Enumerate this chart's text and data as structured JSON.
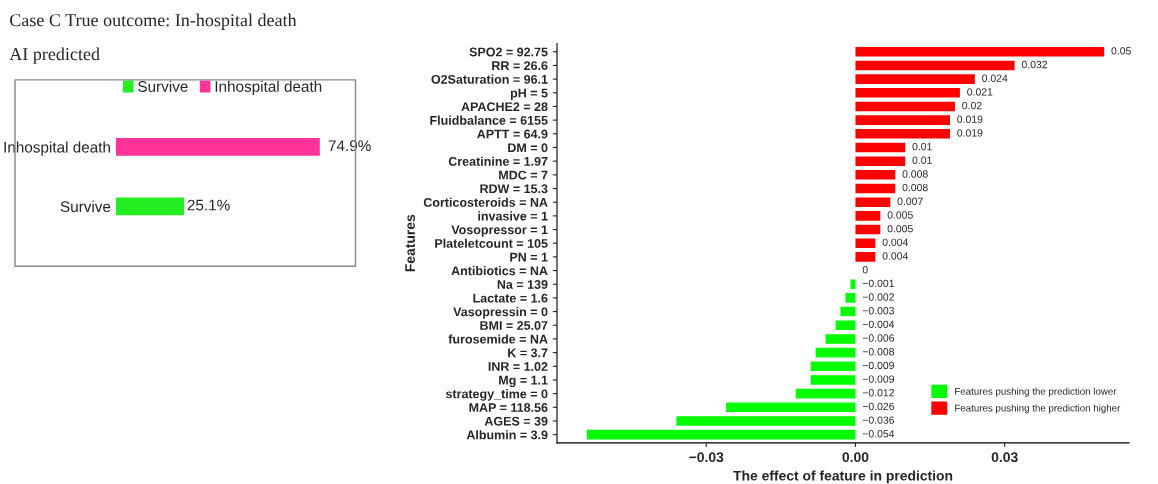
{
  "chart_data": [
    {
      "type": "bar",
      "orientation": "horizontal",
      "title": "Case C True outcome: In-hospital death",
      "subtitle": "AI predicted",
      "categories": [
        "Inhospital death",
        "Survive"
      ],
      "series": [
        {
          "name": "Survive",
          "color": "#22ee22",
          "values": [
            null,
            25.1
          ],
          "value_labels": [
            null,
            "25.1%"
          ]
        },
        {
          "name": "Inhospital death",
          "color": "#ff3399",
          "values": [
            74.9,
            null
          ],
          "value_labels": [
            "74.9%",
            null
          ]
        }
      ],
      "tick_labels": "y",
      "legend": "top"
    },
    {
      "type": "bar",
      "orientation": "horizontal",
      "xlabel": "The effect of feature in prediction",
      "ylabel": "Features",
      "categories": [
        "SPO2 = 92.75",
        "RR = 26.6",
        "O2Saturation = 96.1",
        "pH = 5",
        "APACHE2 = 28",
        "Fluidbalance = 6155",
        "APTT = 64.9",
        "DM = 0",
        "Creatinine = 1.97",
        "MDC = 7",
        "RDW = 15.3",
        "Corticosteroids = NA",
        "invasive = 1",
        "Vosopressor = 1",
        "Plateletcount = 105",
        "PN = 1",
        "Antibiotics = NA",
        "Na = 139",
        "Lactate = 1.6",
        "Vasopressin = 0",
        "BMI = 25.07",
        "furosemide = NA",
        "K = 3.7",
        "INR = 1.02",
        "Mg = 1.1",
        "strategy_time = 0",
        "MAP = 118.56",
        "AGES = 39",
        "Albumin = 3.9"
      ],
      "series": [
        {
          "name": "Features pushing the prediction lower",
          "color": "#00ff00",
          "values": [
            null,
            null,
            null,
            null,
            null,
            null,
            null,
            null,
            null,
            null,
            null,
            null,
            null,
            null,
            null,
            null,
            null,
            -0.001,
            -0.002,
            -0.003,
            -0.004,
            -0.006,
            -0.008,
            -0.009,
            -0.009,
            -0.012,
            -0.026,
            -0.036,
            -0.054
          ]
        },
        {
          "name": "Features pushing the prediction higher",
          "color": "#ff0000",
          "values": [
            0.05,
            0.032,
            0.024,
            0.021,
            0.02,
            0.019,
            0.019,
            0.01,
            0.01,
            0.008,
            0.008,
            0.007,
            0.005,
            0.005,
            0.004,
            0.004,
            0,
            null,
            null,
            null,
            null,
            null,
            null,
            null,
            null,
            null,
            null,
            null,
            null
          ]
        }
      ],
      "data_labels": true,
      "xlim": [
        -0.06,
        0.055
      ],
      "xticks": [
        {
          "value": -0.03,
          "label": "−0.03"
        },
        {
          "value": 0,
          "label": "0.00"
        },
        0.03
      ],
      "grid": false,
      "legend": "bottom right"
    }
  ]
}
